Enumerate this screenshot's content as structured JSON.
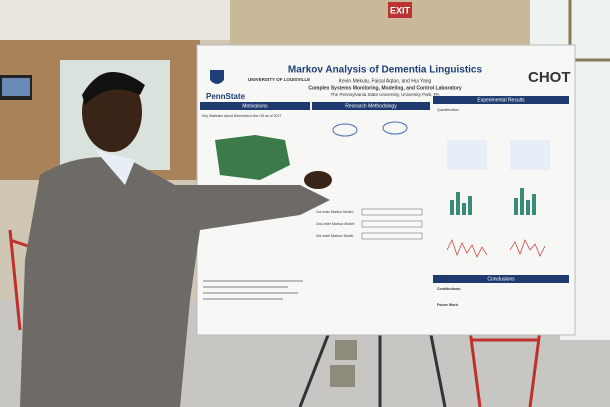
{
  "scene": {
    "exit_sign": "EXIT"
  },
  "poster": {
    "logos": [
      "PennState",
      "UNIVERSITY OF LOUISVILLE",
      "CHOT"
    ],
    "title": "Markov Analysis of Dementia Linguistics",
    "authors": "Kevin Mekulu, Faisal Aqlan, and Hui Yang",
    "lab": "Complex Systems Monitoring, Modeling, and Control Laboratory",
    "university": "The Pennsylvania State University, University Park, PA",
    "sections": [
      {
        "heading": "Motivations",
        "items": [
          "Key Statistics about Dementia in the US as of 2017"
        ]
      },
      {
        "heading": "Research Methodology",
        "items": [
          "1st order Markov Model:",
          "2nd order Markov Model:",
          "3rd order Markov Model:"
        ]
      },
      {
        "heading": "Experimental Results",
        "items": [
          "Quantification:"
        ]
      },
      {
        "heading": "Conclusions",
        "items": [
          "Contributions:",
          "Future Work:"
        ]
      }
    ]
  }
}
